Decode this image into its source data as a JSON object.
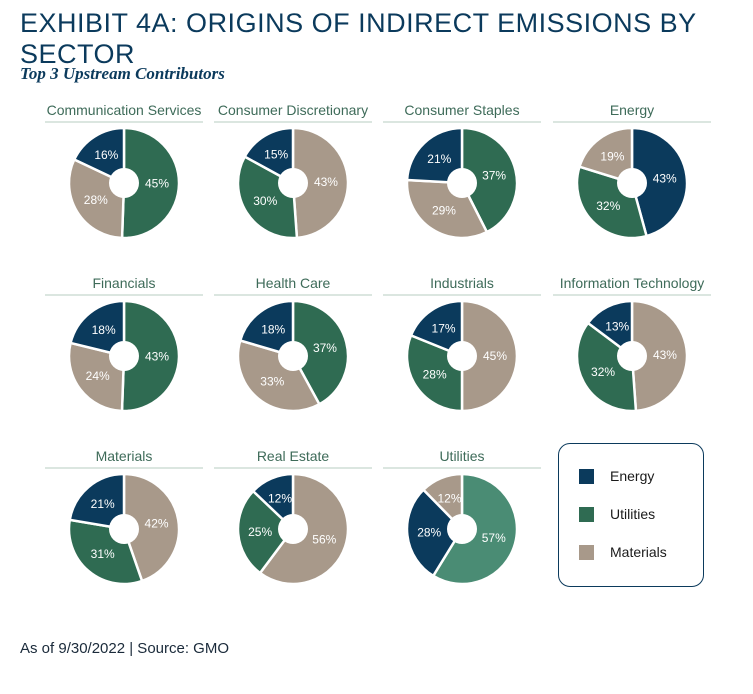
{
  "title": "EXHIBIT 4A: ORIGINS OF INDIRECT EMISSIONS BY SECTOR",
  "subtitle": "Top 3 Upstream Contributors",
  "footer": "As of 9/30/2022 | Source: GMO",
  "colors": {
    "Energy": "#0b3a5c",
    "Utilities": "#2f6b52",
    "Materials": "#a8998a",
    "Utilities_alt": "#4a8c74"
  },
  "legend": [
    {
      "name": "Energy",
      "color": "#0b3a5c"
    },
    {
      "name": "Utilities",
      "color": "#2f6b52"
    },
    {
      "name": "Materials",
      "color": "#a8998a"
    }
  ],
  "chart_data": {
    "type": "pie",
    "variant": "donut",
    "series_names": [
      "Energy",
      "Utilities",
      "Materials"
    ],
    "charts": [
      {
        "title": "Communication Services",
        "values": {
          "Energy": 16,
          "Utilities": 45,
          "Materials": 28
        }
      },
      {
        "title": "Consumer Discretionary",
        "values": {
          "Energy": 15,
          "Utilities": 30,
          "Materials": 43
        }
      },
      {
        "title": "Consumer Staples",
        "values": {
          "Energy": 21,
          "Utilities": 37,
          "Materials": 29
        }
      },
      {
        "title": "Energy",
        "values": {
          "Energy": 43,
          "Utilities": 32,
          "Materials": 19
        }
      },
      {
        "title": "Financials",
        "values": {
          "Energy": 18,
          "Utilities": 43,
          "Materials": 24
        }
      },
      {
        "title": "Health Care",
        "values": {
          "Energy": 18,
          "Utilities": 37,
          "Materials": 33
        }
      },
      {
        "title": "Industrials",
        "values": {
          "Energy": 17,
          "Utilities": 28,
          "Materials": 45
        }
      },
      {
        "title": "Information Technology",
        "values": {
          "Energy": 13,
          "Utilities": 32,
          "Materials": 43
        }
      },
      {
        "title": "Materials",
        "values": {
          "Energy": 21,
          "Utilities": 31,
          "Materials": 42
        }
      },
      {
        "title": "Real Estate",
        "values": {
          "Energy": 12,
          "Utilities": 25,
          "Materials": 56
        }
      },
      {
        "title": "Utilities",
        "values": {
          "Energy": 28,
          "Utilities": 57,
          "Materials": 12
        }
      }
    ]
  }
}
